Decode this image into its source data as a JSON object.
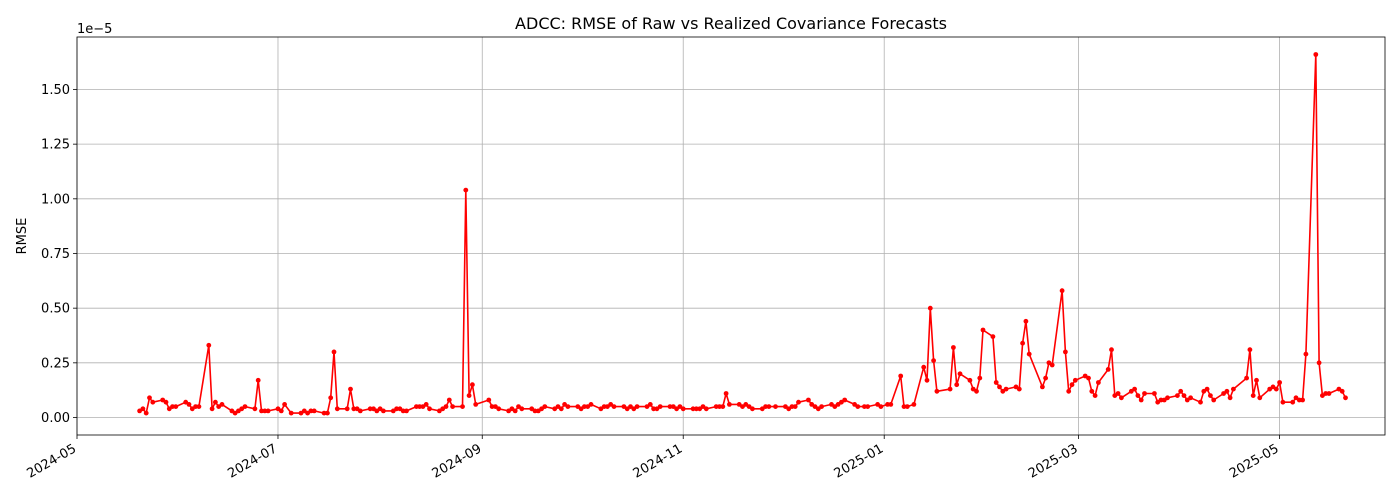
{
  "chart_data": {
    "type": "line",
    "title": "ADCC: RMSE of Raw vs Realized Covariance Forecasts",
    "xlabel": "",
    "ylabel": "RMSE",
    "y_offset_label": "1e−5",
    "y_scale_factor": 1e-05,
    "xlim": [
      "2024-05-01",
      "2025-06-02"
    ],
    "ylim": [
      -0.08,
      1.74
    ],
    "x_ticks": [
      "2024-05-01",
      "2024-07-01",
      "2024-09-01",
      "2024-11-01",
      "2025-01-01",
      "2025-03-01",
      "2025-05-01"
    ],
    "x_tick_labels": [
      "2024-05",
      "2024-07",
      "2024-09",
      "2024-11",
      "2025-01",
      "2025-03",
      "2025-05"
    ],
    "y_ticks": [
      0.0,
      0.25,
      0.5,
      0.75,
      1.0,
      1.25,
      1.5
    ],
    "y_tick_labels": [
      "0.00",
      "0.25",
      "0.50",
      "0.75",
      "1.00",
      "1.25",
      "1.50"
    ],
    "grid": true,
    "series": [
      {
        "color": "#ff0000",
        "marker": "circle",
        "points": [
          [
            "2024-05-20",
            0.03
          ],
          [
            "2024-05-21",
            0.04
          ],
          [
            "2024-05-22",
            0.02
          ],
          [
            "2024-05-23",
            0.09
          ],
          [
            "2024-05-24",
            0.07
          ],
          [
            "2024-05-27",
            0.08
          ],
          [
            "2024-05-28",
            0.07
          ],
          [
            "2024-05-29",
            0.04
          ],
          [
            "2024-05-30",
            0.05
          ],
          [
            "2024-05-31",
            0.05
          ],
          [
            "2024-06-03",
            0.07
          ],
          [
            "2024-06-04",
            0.06
          ],
          [
            "2024-06-05",
            0.04
          ],
          [
            "2024-06-06",
            0.05
          ],
          [
            "2024-06-07",
            0.05
          ],
          [
            "2024-06-10",
            0.33
          ],
          [
            "2024-06-11",
            0.04
          ],
          [
            "2024-06-12",
            0.07
          ],
          [
            "2024-06-13",
            0.05
          ],
          [
            "2024-06-14",
            0.06
          ],
          [
            "2024-06-17",
            0.03
          ],
          [
            "2024-06-18",
            0.02
          ],
          [
            "2024-06-19",
            0.03
          ],
          [
            "2024-06-20",
            0.04
          ],
          [
            "2024-06-21",
            0.05
          ],
          [
            "2024-06-24",
            0.04
          ],
          [
            "2024-06-25",
            0.17
          ],
          [
            "2024-06-26",
            0.03
          ],
          [
            "2024-06-27",
            0.03
          ],
          [
            "2024-06-28",
            0.03
          ],
          [
            "2024-07-01",
            0.04
          ],
          [
            "2024-07-02",
            0.03
          ],
          [
            "2024-07-03",
            0.06
          ],
          [
            "2024-07-05",
            0.02
          ],
          [
            "2024-07-08",
            0.02
          ],
          [
            "2024-07-09",
            0.03
          ],
          [
            "2024-07-10",
            0.02
          ],
          [
            "2024-07-11",
            0.03
          ],
          [
            "2024-07-12",
            0.03
          ],
          [
            "2024-07-15",
            0.02
          ],
          [
            "2024-07-16",
            0.02
          ],
          [
            "2024-07-17",
            0.09
          ],
          [
            "2024-07-18",
            0.3
          ],
          [
            "2024-07-19",
            0.04
          ],
          [
            "2024-07-22",
            0.04
          ],
          [
            "2024-07-23",
            0.13
          ],
          [
            "2024-07-24",
            0.04
          ],
          [
            "2024-07-25",
            0.04
          ],
          [
            "2024-07-26",
            0.03
          ],
          [
            "2024-07-29",
            0.04
          ],
          [
            "2024-07-30",
            0.04
          ],
          [
            "2024-07-31",
            0.03
          ],
          [
            "2024-08-01",
            0.04
          ],
          [
            "2024-08-02",
            0.03
          ],
          [
            "2024-08-05",
            0.03
          ],
          [
            "2024-08-06",
            0.04
          ],
          [
            "2024-08-07",
            0.04
          ],
          [
            "2024-08-08",
            0.03
          ],
          [
            "2024-08-09",
            0.03
          ],
          [
            "2024-08-12",
            0.05
          ],
          [
            "2024-08-13",
            0.05
          ],
          [
            "2024-08-14",
            0.05
          ],
          [
            "2024-08-15",
            0.06
          ],
          [
            "2024-08-16",
            0.04
          ],
          [
            "2024-08-19",
            0.03
          ],
          [
            "2024-08-20",
            0.04
          ],
          [
            "2024-08-21",
            0.05
          ],
          [
            "2024-08-22",
            0.08
          ],
          [
            "2024-08-23",
            0.05
          ],
          [
            "2024-08-26",
            0.05
          ],
          [
            "2024-08-27",
            1.04
          ],
          [
            "2024-08-28",
            0.1
          ],
          [
            "2024-08-29",
            0.15
          ],
          [
            "2024-08-30",
            0.06
          ],
          [
            "2024-09-03",
            0.08
          ],
          [
            "2024-09-04",
            0.05
          ],
          [
            "2024-09-05",
            0.05
          ],
          [
            "2024-09-06",
            0.04
          ],
          [
            "2024-09-09",
            0.03
          ],
          [
            "2024-09-10",
            0.04
          ],
          [
            "2024-09-11",
            0.03
          ],
          [
            "2024-09-12",
            0.05
          ],
          [
            "2024-09-13",
            0.04
          ],
          [
            "2024-09-16",
            0.04
          ],
          [
            "2024-09-17",
            0.03
          ],
          [
            "2024-09-18",
            0.03
          ],
          [
            "2024-09-19",
            0.04
          ],
          [
            "2024-09-20",
            0.05
          ],
          [
            "2024-09-23",
            0.04
          ],
          [
            "2024-09-24",
            0.05
          ],
          [
            "2024-09-25",
            0.04
          ],
          [
            "2024-09-26",
            0.06
          ],
          [
            "2024-09-27",
            0.05
          ],
          [
            "2024-09-30",
            0.05
          ],
          [
            "2024-10-01",
            0.04
          ],
          [
            "2024-10-02",
            0.05
          ],
          [
            "2024-10-03",
            0.05
          ],
          [
            "2024-10-04",
            0.06
          ],
          [
            "2024-10-07",
            0.04
          ],
          [
            "2024-10-08",
            0.05
          ],
          [
            "2024-10-09",
            0.05
          ],
          [
            "2024-10-10",
            0.06
          ],
          [
            "2024-10-11",
            0.05
          ],
          [
            "2024-10-14",
            0.05
          ],
          [
            "2024-10-15",
            0.04
          ],
          [
            "2024-10-16",
            0.05
          ],
          [
            "2024-10-17",
            0.04
          ],
          [
            "2024-10-18",
            0.05
          ],
          [
            "2024-10-21",
            0.05
          ],
          [
            "2024-10-22",
            0.06
          ],
          [
            "2024-10-23",
            0.04
          ],
          [
            "2024-10-24",
            0.04
          ],
          [
            "2024-10-25",
            0.05
          ],
          [
            "2024-10-28",
            0.05
          ],
          [
            "2024-10-29",
            0.05
          ],
          [
            "2024-10-30",
            0.04
          ],
          [
            "2024-10-31",
            0.05
          ],
          [
            "2024-11-01",
            0.04
          ],
          [
            "2024-11-04",
            0.04
          ],
          [
            "2024-11-05",
            0.04
          ],
          [
            "2024-11-06",
            0.04
          ],
          [
            "2024-11-07",
            0.05
          ],
          [
            "2024-11-08",
            0.04
          ],
          [
            "2024-11-11",
            0.05
          ],
          [
            "2024-11-12",
            0.05
          ],
          [
            "2024-11-13",
            0.05
          ],
          [
            "2024-11-14",
            0.11
          ],
          [
            "2024-11-15",
            0.06
          ],
          [
            "2024-11-18",
            0.06
          ],
          [
            "2024-11-19",
            0.05
          ],
          [
            "2024-11-20",
            0.06
          ],
          [
            "2024-11-21",
            0.05
          ],
          [
            "2024-11-22",
            0.04
          ],
          [
            "2024-11-25",
            0.04
          ],
          [
            "2024-11-26",
            0.05
          ],
          [
            "2024-11-27",
            0.05
          ],
          [
            "2024-11-29",
            0.05
          ],
          [
            "2024-12-02",
            0.05
          ],
          [
            "2024-12-03",
            0.04
          ],
          [
            "2024-12-04",
            0.05
          ],
          [
            "2024-12-05",
            0.05
          ],
          [
            "2024-12-06",
            0.07
          ],
          [
            "2024-12-09",
            0.08
          ],
          [
            "2024-12-10",
            0.06
          ],
          [
            "2024-12-11",
            0.05
          ],
          [
            "2024-12-12",
            0.04
          ],
          [
            "2024-12-13",
            0.05
          ],
          [
            "2024-12-16",
            0.06
          ],
          [
            "2024-12-17",
            0.05
          ],
          [
            "2024-12-18",
            0.06
          ],
          [
            "2024-12-19",
            0.07
          ],
          [
            "2024-12-20",
            0.08
          ],
          [
            "2024-12-23",
            0.06
          ],
          [
            "2024-12-24",
            0.05
          ],
          [
            "2024-12-26",
            0.05
          ],
          [
            "2024-12-27",
            0.05
          ],
          [
            "2024-12-30",
            0.06
          ],
          [
            "2024-12-31",
            0.05
          ],
          [
            "2025-01-02",
            0.06
          ],
          [
            "2025-01-03",
            0.06
          ],
          [
            "2025-01-06",
            0.19
          ],
          [
            "2025-01-07",
            0.05
          ],
          [
            "2025-01-08",
            0.05
          ],
          [
            "2025-01-10",
            0.06
          ],
          [
            "2025-01-13",
            0.23
          ],
          [
            "2025-01-14",
            0.17
          ],
          [
            "2025-01-15",
            0.5
          ],
          [
            "2025-01-16",
            0.26
          ],
          [
            "2025-01-17",
            0.12
          ],
          [
            "2025-01-21",
            0.13
          ],
          [
            "2025-01-22",
            0.32
          ],
          [
            "2025-01-23",
            0.15
          ],
          [
            "2025-01-24",
            0.2
          ],
          [
            "2025-01-27",
            0.17
          ],
          [
            "2025-01-28",
            0.13
          ],
          [
            "2025-01-29",
            0.12
          ],
          [
            "2025-01-30",
            0.18
          ],
          [
            "2025-01-31",
            0.4
          ],
          [
            "2025-02-03",
            0.37
          ],
          [
            "2025-02-04",
            0.16
          ],
          [
            "2025-02-05",
            0.14
          ],
          [
            "2025-02-06",
            0.12
          ],
          [
            "2025-02-07",
            0.13
          ],
          [
            "2025-02-10",
            0.14
          ],
          [
            "2025-02-11",
            0.13
          ],
          [
            "2025-02-12",
            0.34
          ],
          [
            "2025-02-13",
            0.44
          ],
          [
            "2025-02-14",
            0.29
          ],
          [
            "2025-02-18",
            0.14
          ],
          [
            "2025-02-19",
            0.18
          ],
          [
            "2025-02-20",
            0.25
          ],
          [
            "2025-02-21",
            0.24
          ],
          [
            "2025-02-24",
            0.58
          ],
          [
            "2025-02-25",
            0.3
          ],
          [
            "2025-02-26",
            0.12
          ],
          [
            "2025-02-27",
            0.15
          ],
          [
            "2025-02-28",
            0.17
          ],
          [
            "2025-03-03",
            0.19
          ],
          [
            "2025-03-04",
            0.18
          ],
          [
            "2025-03-05",
            0.12
          ],
          [
            "2025-03-06",
            0.1
          ],
          [
            "2025-03-07",
            0.16
          ],
          [
            "2025-03-10",
            0.22
          ],
          [
            "2025-03-11",
            0.31
          ],
          [
            "2025-03-12",
            0.1
          ],
          [
            "2025-03-13",
            0.11
          ],
          [
            "2025-03-14",
            0.09
          ],
          [
            "2025-03-17",
            0.12
          ],
          [
            "2025-03-18",
            0.13
          ],
          [
            "2025-03-19",
            0.1
          ],
          [
            "2025-03-20",
            0.08
          ],
          [
            "2025-03-21",
            0.11
          ],
          [
            "2025-03-24",
            0.11
          ],
          [
            "2025-03-25",
            0.07
          ],
          [
            "2025-03-26",
            0.08
          ],
          [
            "2025-03-27",
            0.08
          ],
          [
            "2025-03-28",
            0.09
          ],
          [
            "2025-03-31",
            0.1
          ],
          [
            "2025-04-01",
            0.12
          ],
          [
            "2025-04-02",
            0.1
          ],
          [
            "2025-04-03",
            0.08
          ],
          [
            "2025-04-04",
            0.09
          ],
          [
            "2025-04-07",
            0.07
          ],
          [
            "2025-04-08",
            0.12
          ],
          [
            "2025-04-09",
            0.13
          ],
          [
            "2025-04-10",
            0.1
          ],
          [
            "2025-04-11",
            0.08
          ],
          [
            "2025-04-14",
            0.11
          ],
          [
            "2025-04-15",
            0.12
          ],
          [
            "2025-04-16",
            0.09
          ],
          [
            "2025-04-17",
            0.13
          ],
          [
            "2025-04-21",
            0.18
          ],
          [
            "2025-04-22",
            0.31
          ],
          [
            "2025-04-23",
            0.1
          ],
          [
            "2025-04-24",
            0.17
          ],
          [
            "2025-04-25",
            0.09
          ],
          [
            "2025-04-28",
            0.13
          ],
          [
            "2025-04-29",
            0.14
          ],
          [
            "2025-04-30",
            0.13
          ],
          [
            "2025-05-01",
            0.16
          ],
          [
            "2025-05-02",
            0.07
          ],
          [
            "2025-05-05",
            0.07
          ],
          [
            "2025-05-06",
            0.09
          ],
          [
            "2025-05-07",
            0.08
          ],
          [
            "2025-05-08",
            0.08
          ],
          [
            "2025-05-09",
            0.29
          ],
          [
            "2025-05-12",
            1.66
          ],
          [
            "2025-05-13",
            0.25
          ],
          [
            "2025-05-14",
            0.1
          ],
          [
            "2025-05-15",
            0.11
          ],
          [
            "2025-05-16",
            0.11
          ],
          [
            "2025-05-19",
            0.13
          ],
          [
            "2025-05-20",
            0.12
          ],
          [
            "2025-05-21",
            0.09
          ]
        ]
      }
    ]
  }
}
